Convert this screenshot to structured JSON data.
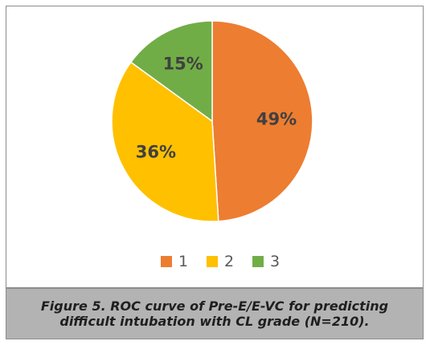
{
  "chart_data": {
    "type": "pie",
    "categories": [
      "1",
      "2",
      "3"
    ],
    "values": [
      49,
      36,
      15
    ],
    "data_labels": [
      "49%",
      "36%",
      "15%"
    ],
    "colors": [
      "#ED7D31",
      "#FFC000",
      "#70AD47"
    ],
    "label_color": "#404040",
    "legend_position": "bottom",
    "start_angle_deg": 0,
    "direction": "clockwise"
  },
  "caption": "Figure 5. ROC curve of Pre-E/E-VC for predicting difficult intubation with CL grade (N=210)."
}
